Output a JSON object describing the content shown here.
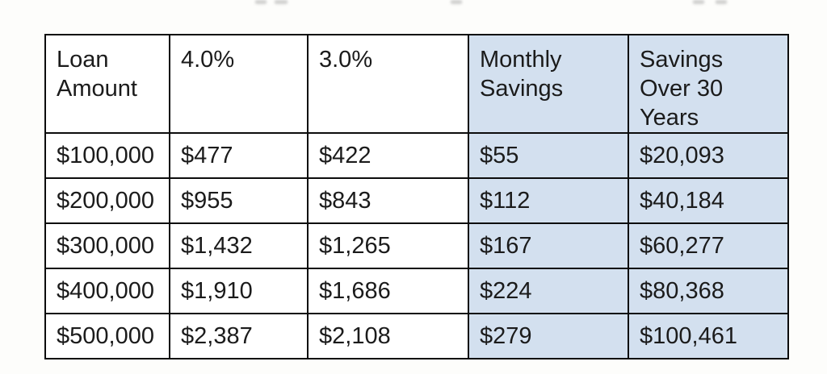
{
  "colors": {
    "highlight_fill": "#d3e0ef",
    "border": "#0c0c0c",
    "text": "#1b1b1b",
    "background": "#fdfdfb"
  },
  "chart_data": {
    "type": "table",
    "title": "",
    "columns": [
      "Loan Amount",
      "4.0%",
      "3.0%",
      "Monthly Savings",
      "Savings Over 30 Years"
    ],
    "highlighted_columns": [
      "Monthly Savings",
      "Savings Over 30 Years"
    ],
    "rows": [
      [
        "$100,000",
        "$477",
        "$422",
        "$55",
        "$20,093"
      ],
      [
        "$200,000",
        "$955",
        "$843",
        "$112",
        "$40,184"
      ],
      [
        "$300,000",
        "$1,432",
        "$1,265",
        "$167",
        "$60,277"
      ],
      [
        "$400,000",
        "$1,910",
        "$1,686",
        "$224",
        "$80,368"
      ],
      [
        "$500,000",
        "$2,387",
        "$2,108",
        "$279",
        "$100,461"
      ]
    ]
  }
}
